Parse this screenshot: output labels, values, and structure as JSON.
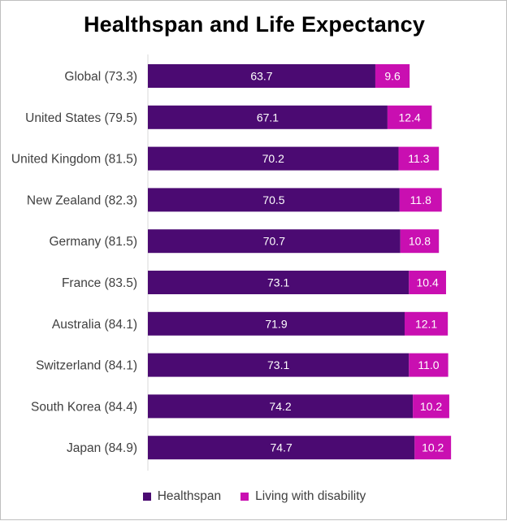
{
  "chart_data": {
    "type": "bar",
    "orientation": "horizontal",
    "stacked": true,
    "title": "Healthspan  and Life Expectancy",
    "categories": [
      "Global (73.3)",
      "United States (79.5)",
      "United Kingdom (81.5)",
      "New Zealand (82.3)",
      "Germany (81.5)",
      "France (83.5)",
      "Australia (84.1)",
      "Switzerland (84.1)",
      "South Korea (84.4)",
      "Japan (84.9)"
    ],
    "series": [
      {
        "name": "Healthspan",
        "color": "#4b0a72",
        "values": [
          63.7,
          67.1,
          70.2,
          70.5,
          70.7,
          73.1,
          71.9,
          73.1,
          74.2,
          74.7
        ],
        "labels": [
          "63.7",
          "67.1",
          "70.2",
          "70.5",
          "70.7",
          "73.1",
          "71.9",
          "73.1",
          "74.2",
          "74.7"
        ]
      },
      {
        "name": "Living with disability",
        "color": "#c90fb1",
        "values": [
          9.6,
          12.4,
          11.3,
          11.8,
          10.8,
          10.4,
          12.1,
          11.0,
          10.2,
          10.2
        ],
        "labels": [
          "9.6",
          "12.4",
          "11.3",
          "11.8",
          "10.8",
          "10.4",
          "12.1",
          "11.0",
          "10.2",
          "10.2"
        ]
      }
    ],
    "xlim": [
      0,
      85
    ],
    "grid": false,
    "legend_position": "bottom"
  }
}
